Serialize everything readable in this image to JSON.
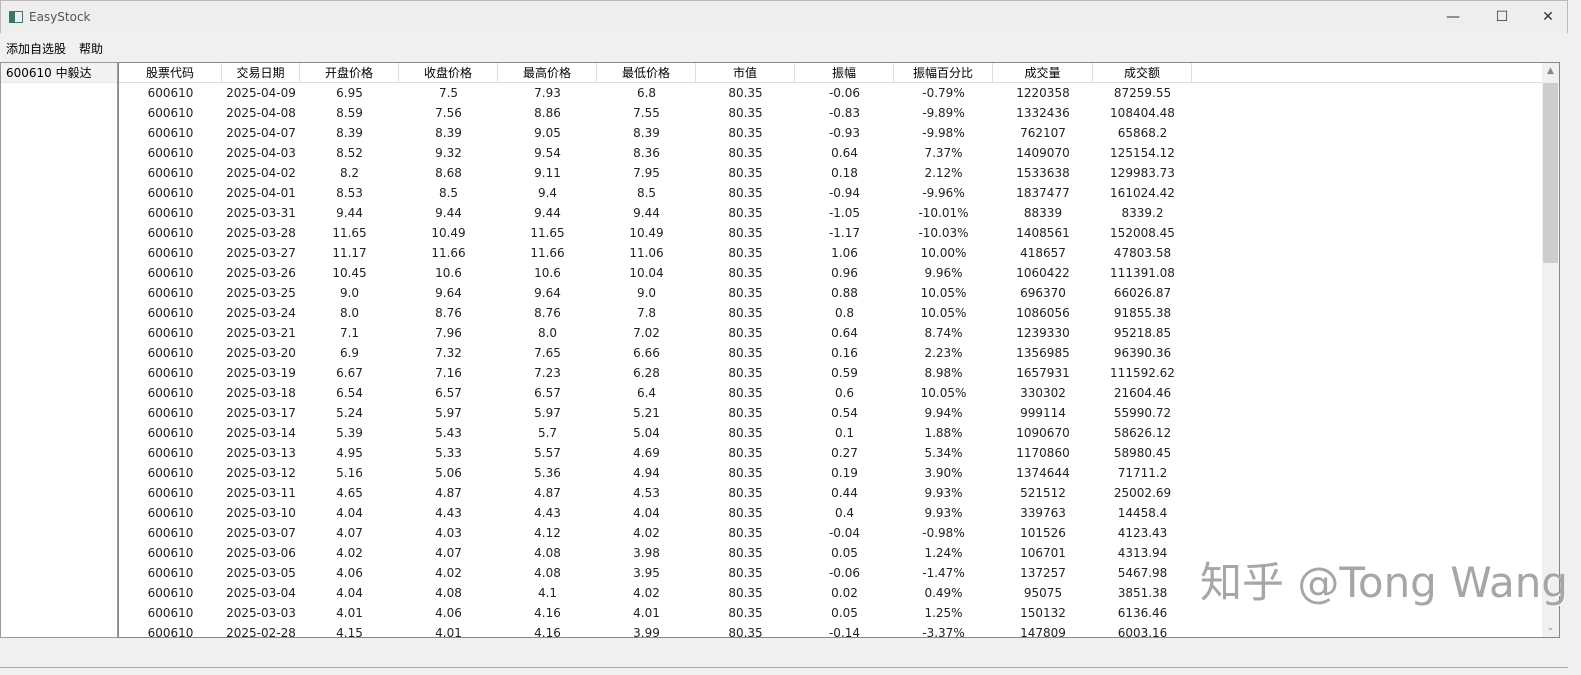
{
  "window": {
    "title": "EasyStock",
    "minimize": "—",
    "maximize": "☐",
    "close": "✕"
  },
  "menu": {
    "items": [
      {
        "label": "添加自选股"
      },
      {
        "label": "帮助"
      }
    ]
  },
  "stock_list": {
    "items": [
      {
        "label": "600610 中毅达"
      }
    ]
  },
  "table": {
    "columns": [
      "股票代码",
      "交易日期",
      "开盘价格",
      "收盘价格",
      "最高价格",
      "最低价格",
      "市值",
      "振幅",
      "振幅百分比",
      "成交量",
      "成交额"
    ],
    "rows": [
      [
        "600610",
        "2025-04-09",
        "6.95",
        "7.5",
        "7.93",
        "6.8",
        "80.35",
        "-0.06",
        "-0.79%",
        "1220358",
        "87259.55"
      ],
      [
        "600610",
        "2025-04-08",
        "8.59",
        "7.56",
        "8.86",
        "7.55",
        "80.35",
        "-0.83",
        "-9.89%",
        "1332436",
        "108404.48"
      ],
      [
        "600610",
        "2025-04-07",
        "8.39",
        "8.39",
        "9.05",
        "8.39",
        "80.35",
        "-0.93",
        "-9.98%",
        "762107",
        "65868.2"
      ],
      [
        "600610",
        "2025-04-03",
        "8.52",
        "9.32",
        "9.54",
        "8.36",
        "80.35",
        "0.64",
        "7.37%",
        "1409070",
        "125154.12"
      ],
      [
        "600610",
        "2025-04-02",
        "8.2",
        "8.68",
        "9.11",
        "7.95",
        "80.35",
        "0.18",
        "2.12%",
        "1533638",
        "129983.73"
      ],
      [
        "600610",
        "2025-04-01",
        "8.53",
        "8.5",
        "9.4",
        "8.5",
        "80.35",
        "-0.94",
        "-9.96%",
        "1837477",
        "161024.42"
      ],
      [
        "600610",
        "2025-03-31",
        "9.44",
        "9.44",
        "9.44",
        "9.44",
        "80.35",
        "-1.05",
        "-10.01%",
        "88339",
        "8339.2"
      ],
      [
        "600610",
        "2025-03-28",
        "11.65",
        "10.49",
        "11.65",
        "10.49",
        "80.35",
        "-1.17",
        "-10.03%",
        "1408561",
        "152008.45"
      ],
      [
        "600610",
        "2025-03-27",
        "11.17",
        "11.66",
        "11.66",
        "11.06",
        "80.35",
        "1.06",
        "10.00%",
        "418657",
        "47803.58"
      ],
      [
        "600610",
        "2025-03-26",
        "10.45",
        "10.6",
        "10.6",
        "10.04",
        "80.35",
        "0.96",
        "9.96%",
        "1060422",
        "111391.08"
      ],
      [
        "600610",
        "2025-03-25",
        "9.0",
        "9.64",
        "9.64",
        "9.0",
        "80.35",
        "0.88",
        "10.05%",
        "696370",
        "66026.87"
      ],
      [
        "600610",
        "2025-03-24",
        "8.0",
        "8.76",
        "8.76",
        "7.8",
        "80.35",
        "0.8",
        "10.05%",
        "1086056",
        "91855.38"
      ],
      [
        "600610",
        "2025-03-21",
        "7.1",
        "7.96",
        "8.0",
        "7.02",
        "80.35",
        "0.64",
        "8.74%",
        "1239330",
        "95218.85"
      ],
      [
        "600610",
        "2025-03-20",
        "6.9",
        "7.32",
        "7.65",
        "6.66",
        "80.35",
        "0.16",
        "2.23%",
        "1356985",
        "96390.36"
      ],
      [
        "600610",
        "2025-03-19",
        "6.67",
        "7.16",
        "7.23",
        "6.28",
        "80.35",
        "0.59",
        "8.98%",
        "1657931",
        "111592.62"
      ],
      [
        "600610",
        "2025-03-18",
        "6.54",
        "6.57",
        "6.57",
        "6.4",
        "80.35",
        "0.6",
        "10.05%",
        "330302",
        "21604.46"
      ],
      [
        "600610",
        "2025-03-17",
        "5.24",
        "5.97",
        "5.97",
        "5.21",
        "80.35",
        "0.54",
        "9.94%",
        "999114",
        "55990.72"
      ],
      [
        "600610",
        "2025-03-14",
        "5.39",
        "5.43",
        "5.7",
        "5.04",
        "80.35",
        "0.1",
        "1.88%",
        "1090670",
        "58626.12"
      ],
      [
        "600610",
        "2025-03-13",
        "4.95",
        "5.33",
        "5.57",
        "4.69",
        "80.35",
        "0.27",
        "5.34%",
        "1170860",
        "58980.45"
      ],
      [
        "600610",
        "2025-03-12",
        "5.16",
        "5.06",
        "5.36",
        "4.94",
        "80.35",
        "0.19",
        "3.90%",
        "1374644",
        "71711.2"
      ],
      [
        "600610",
        "2025-03-11",
        "4.65",
        "4.87",
        "4.87",
        "4.53",
        "80.35",
        "0.44",
        "9.93%",
        "521512",
        "25002.69"
      ],
      [
        "600610",
        "2025-03-10",
        "4.04",
        "4.43",
        "4.43",
        "4.04",
        "80.35",
        "0.4",
        "9.93%",
        "339763",
        "14458.4"
      ],
      [
        "600610",
        "2025-03-07",
        "4.07",
        "4.03",
        "4.12",
        "4.02",
        "80.35",
        "-0.04",
        "-0.98%",
        "101526",
        "4123.43"
      ],
      [
        "600610",
        "2025-03-06",
        "4.02",
        "4.07",
        "4.08",
        "3.98",
        "80.35",
        "0.05",
        "1.24%",
        "106701",
        "4313.94"
      ],
      [
        "600610",
        "2025-03-05",
        "4.06",
        "4.02",
        "4.08",
        "3.95",
        "80.35",
        "-0.06",
        "-1.47%",
        "137257",
        "5467.98"
      ],
      [
        "600610",
        "2025-03-04",
        "4.04",
        "4.08",
        "4.1",
        "4.02",
        "80.35",
        "0.02",
        "0.49%",
        "95075",
        "3851.38"
      ],
      [
        "600610",
        "2025-03-03",
        "4.01",
        "4.06",
        "4.16",
        "4.01",
        "80.35",
        "0.05",
        "1.25%",
        "150132",
        "6136.46"
      ],
      [
        "600610",
        "2025-02-28",
        "4.15",
        "4.01",
        "4.16",
        "3.99",
        "80.35",
        "-0.14",
        "-3.37%",
        "147809",
        "6003.16"
      ]
    ]
  },
  "watermark": "知乎 @Tong Wang"
}
